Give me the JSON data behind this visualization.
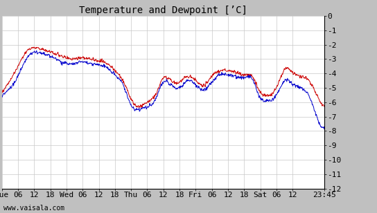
{
  "title": "Temperature and Dewpoint [’C]",
  "footer": "www.vaisala.com",
  "ylim": [
    -12,
    0
  ],
  "yticks": [
    0,
    -1,
    -2,
    -3,
    -4,
    -5,
    -6,
    -7,
    -8,
    -9,
    -10,
    -11,
    -12
  ],
  "bg_color": "#c0c0c0",
  "plot_bg": "#ffffff",
  "grid_color": "#c8c8c8",
  "temp_color": "#cc0000",
  "dewp_color": "#0000cc",
  "xtick_positions": [
    0,
    6,
    12,
    18,
    24,
    30,
    36,
    42,
    48,
    54,
    60,
    66,
    72,
    78,
    84,
    90,
    96,
    102,
    108,
    119.75
  ],
  "xtick_labels": [
    "Tue",
    "06",
    "12",
    "18",
    "Wed",
    "06",
    "12",
    "18",
    "Thu",
    "06",
    "12",
    "18",
    "Fri",
    "06",
    "12",
    "18",
    "Sat",
    "06",
    "12",
    "23:45"
  ],
  "title_fontsize": 10,
  "axis_fontsize": 8,
  "footer_fontsize": 7,
  "total_hours": 119.75,
  "temp_knots_t": [
    0,
    3,
    6,
    9,
    12,
    15,
    18,
    21,
    24,
    27,
    30,
    33,
    36,
    39,
    42,
    45,
    48,
    51,
    54,
    57,
    60,
    63,
    66,
    69,
    72,
    75,
    78,
    81,
    84,
    87,
    90,
    93,
    96,
    99,
    102,
    105,
    108,
    111,
    114,
    117,
    119.75
  ],
  "temp_knots_v": [
    -5.3,
    -4.5,
    -3.5,
    -2.5,
    -2.2,
    -2.3,
    -2.5,
    -2.7,
    -2.9,
    -3.0,
    -2.9,
    -3.0,
    -3.1,
    -3.3,
    -3.8,
    -4.5,
    -5.8,
    -6.3,
    -6.0,
    -5.5,
    -4.3,
    -4.5,
    -4.6,
    -4.2,
    -4.5,
    -4.8,
    -4.2,
    -3.8,
    -3.8,
    -3.9,
    -4.1,
    -4.2,
    -5.3,
    -5.5,
    -5.0,
    -3.7,
    -3.9,
    -4.2,
    -4.5,
    -5.5,
    -6.3
  ],
  "dewp_knots_t": [
    0,
    3,
    6,
    9,
    12,
    15,
    18,
    21,
    24,
    27,
    30,
    33,
    36,
    39,
    42,
    45,
    48,
    51,
    54,
    57,
    60,
    63,
    66,
    69,
    72,
    75,
    78,
    81,
    84,
    87,
    90,
    93,
    96,
    99,
    102,
    105,
    108,
    111,
    114,
    117,
    119.75
  ],
  "dewp_knots_v": [
    -5.6,
    -5.0,
    -4.2,
    -3.0,
    -2.5,
    -2.6,
    -2.8,
    -3.1,
    -3.3,
    -3.3,
    -3.2,
    -3.3,
    -3.4,
    -3.6,
    -4.1,
    -4.8,
    -6.2,
    -6.5,
    -6.3,
    -5.8,
    -4.6,
    -4.8,
    -5.0,
    -4.5,
    -4.8,
    -5.1,
    -4.6,
    -4.1,
    -4.1,
    -4.2,
    -4.3,
    -4.4,
    -5.7,
    -5.9,
    -5.5,
    -4.5,
    -4.7,
    -5.0,
    -5.5,
    -7.0,
    -7.8
  ]
}
